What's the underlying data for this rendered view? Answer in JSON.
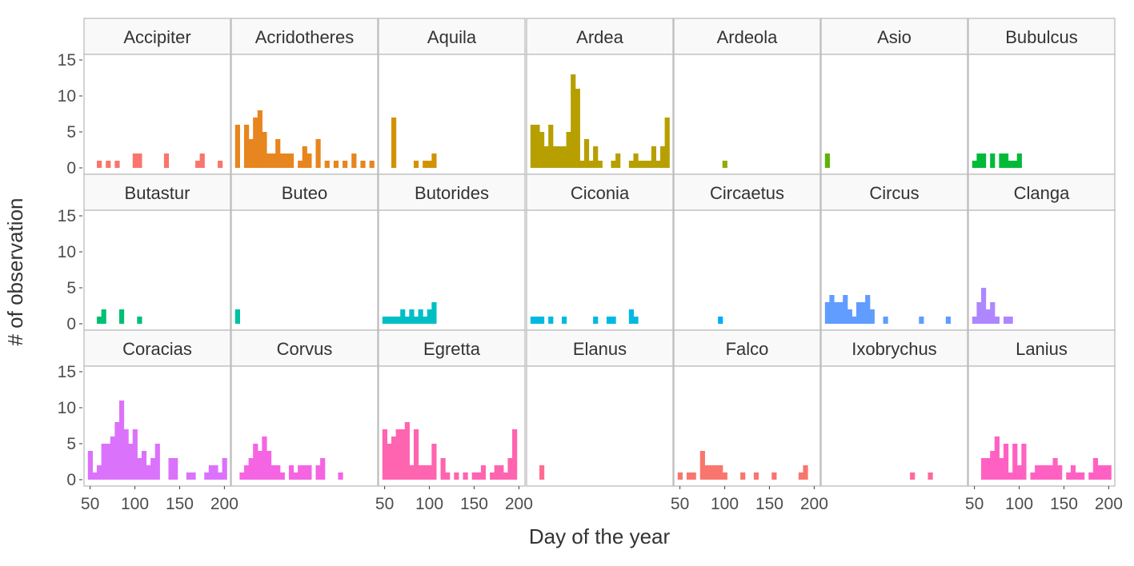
{
  "chart_data": {
    "type": "bar",
    "subtype": "faceted-histogram",
    "xlabel": "Day of the year",
    "ylabel": "# of observation",
    "ylim": [
      0,
      15
    ],
    "yticks": [
      0,
      5,
      10,
      15
    ],
    "xlim": [
      45,
      205
    ],
    "xticks": [
      50,
      100,
      150,
      200
    ],
    "bin_width": 5,
    "grid": false,
    "legend": "none",
    "x_tick_label_panels": [
      14,
      16,
      18,
      20
    ],
    "series": [
      {
        "name": "Accipiter",
        "color": "#F8766D",
        "bins": [
          [
            60,
            1
          ],
          [
            70,
            1
          ],
          [
            80,
            1
          ],
          [
            100,
            2
          ],
          [
            105,
            2
          ],
          [
            135,
            2
          ],
          [
            170,
            1
          ],
          [
            175,
            2
          ],
          [
            195,
            1
          ]
        ]
      },
      {
        "name": "Acridotheres",
        "color": "#E7851E",
        "bins": [
          [
            50,
            6
          ],
          [
            60,
            6
          ],
          [
            65,
            4
          ],
          [
            70,
            7
          ],
          [
            75,
            8
          ],
          [
            80,
            5
          ],
          [
            85,
            2
          ],
          [
            90,
            2
          ],
          [
            95,
            4
          ],
          [
            100,
            2
          ],
          [
            105,
            2
          ],
          [
            110,
            2
          ],
          [
            120,
            1
          ],
          [
            125,
            3
          ],
          [
            130,
            2
          ],
          [
            140,
            4
          ],
          [
            150,
            1
          ],
          [
            160,
            1
          ],
          [
            170,
            1
          ],
          [
            180,
            2
          ],
          [
            190,
            1
          ],
          [
            200,
            1
          ]
        ]
      },
      {
        "name": "Aquila",
        "color": "#D39200",
        "bins": [
          [
            60,
            7
          ],
          [
            85,
            1
          ],
          [
            95,
            1
          ],
          [
            100,
            1
          ],
          [
            105,
            2
          ]
        ]
      },
      {
        "name": "Ardea",
        "color": "#B79F00",
        "bins": [
          [
            50,
            6
          ],
          [
            55,
            6
          ],
          [
            60,
            5
          ],
          [
            65,
            3
          ],
          [
            70,
            6
          ],
          [
            75,
            3
          ],
          [
            80,
            3
          ],
          [
            85,
            3
          ],
          [
            90,
            5
          ],
          [
            95,
            13
          ],
          [
            100,
            11
          ],
          [
            105,
            1
          ],
          [
            110,
            4
          ],
          [
            115,
            1
          ],
          [
            120,
            3
          ],
          [
            125,
            1
          ],
          [
            140,
            1
          ],
          [
            145,
            2
          ],
          [
            160,
            1
          ],
          [
            165,
            2
          ],
          [
            170,
            1
          ],
          [
            175,
            1
          ],
          [
            180,
            1
          ],
          [
            185,
            3
          ],
          [
            190,
            1
          ],
          [
            195,
            3
          ],
          [
            200,
            7
          ]
        ]
      },
      {
        "name": "Ardeola",
        "color": "#93AA00",
        "bins": [
          [
            100,
            1
          ]
        ]
      },
      {
        "name": "Asio",
        "color": "#5EB300",
        "bins": [
          [
            50,
            2
          ]
        ]
      },
      {
        "name": "Bubulcus",
        "color": "#00BA38",
        "bins": [
          [
            50,
            1
          ],
          [
            55,
            2
          ],
          [
            60,
            2
          ],
          [
            70,
            2
          ],
          [
            80,
            2
          ],
          [
            85,
            2
          ],
          [
            90,
            1
          ],
          [
            95,
            1
          ],
          [
            100,
            2
          ]
        ]
      },
      {
        "name": "Butastur",
        "color": "#00BF74",
        "bins": [
          [
            60,
            1
          ],
          [
            65,
            2
          ],
          [
            85,
            2
          ],
          [
            105,
            1
          ]
        ]
      },
      {
        "name": "Buteo",
        "color": "#00C19F",
        "bins": [
          [
            50,
            2
          ]
        ]
      },
      {
        "name": "Butorides",
        "color": "#00BFC4",
        "bins": [
          [
            50,
            1
          ],
          [
            55,
            1
          ],
          [
            60,
            1
          ],
          [
            65,
            1
          ],
          [
            70,
            2
          ],
          [
            75,
            1
          ],
          [
            80,
            2
          ],
          [
            85,
            1
          ],
          [
            90,
            2
          ],
          [
            95,
            1
          ],
          [
            100,
            2
          ],
          [
            105,
            3
          ]
        ]
      },
      {
        "name": "Ciconia",
        "color": "#00B9E3",
        "bins": [
          [
            50,
            1
          ],
          [
            55,
            1
          ],
          [
            60,
            1
          ],
          [
            70,
            1
          ],
          [
            85,
            1
          ],
          [
            120,
            1
          ],
          [
            135,
            1
          ],
          [
            140,
            1
          ],
          [
            160,
            2
          ],
          [
            165,
            1
          ]
        ]
      },
      {
        "name": "Circaetus",
        "color": "#00ADFA",
        "bins": [
          [
            95,
            1
          ]
        ]
      },
      {
        "name": "Circus",
        "color": "#619CFF",
        "bins": [
          [
            50,
            3
          ],
          [
            55,
            4
          ],
          [
            60,
            3
          ],
          [
            65,
            3
          ],
          [
            70,
            4
          ],
          [
            75,
            2
          ],
          [
            80,
            1
          ],
          [
            85,
            3
          ],
          [
            90,
            3
          ],
          [
            95,
            4
          ],
          [
            100,
            2
          ],
          [
            115,
            1
          ],
          [
            155,
            1
          ],
          [
            185,
            1
          ]
        ]
      },
      {
        "name": "Clanga",
        "color": "#AE87FF",
        "bins": [
          [
            50,
            1
          ],
          [
            55,
            3
          ],
          [
            60,
            5
          ],
          [
            65,
            2
          ],
          [
            70,
            3
          ],
          [
            75,
            1
          ],
          [
            85,
            1
          ],
          [
            90,
            1
          ]
        ]
      },
      {
        "name": "Coracias",
        "color": "#DB72FB",
        "bins": [
          [
            50,
            4
          ],
          [
            55,
            1
          ],
          [
            60,
            2
          ],
          [
            65,
            5
          ],
          [
            70,
            5
          ],
          [
            75,
            6
          ],
          [
            80,
            8
          ],
          [
            85,
            11
          ],
          [
            90,
            7
          ],
          [
            95,
            5
          ],
          [
            100,
            7
          ],
          [
            105,
            3
          ],
          [
            110,
            4
          ],
          [
            115,
            2
          ],
          [
            120,
            3
          ],
          [
            125,
            5
          ],
          [
            140,
            3
          ],
          [
            145,
            3
          ],
          [
            160,
            1
          ],
          [
            165,
            1
          ],
          [
            180,
            1
          ],
          [
            185,
            2
          ],
          [
            190,
            2
          ],
          [
            195,
            1
          ],
          [
            200,
            3
          ]
        ]
      },
      {
        "name": "Corvus",
        "color": "#F564E3",
        "bins": [
          [
            55,
            1
          ],
          [
            60,
            2
          ],
          [
            65,
            3
          ],
          [
            70,
            5
          ],
          [
            75,
            4
          ],
          [
            80,
            6
          ],
          [
            85,
            4
          ],
          [
            90,
            2
          ],
          [
            95,
            2
          ],
          [
            100,
            1
          ],
          [
            110,
            2
          ],
          [
            115,
            1
          ],
          [
            120,
            2
          ],
          [
            125,
            2
          ],
          [
            130,
            2
          ],
          [
            140,
            2
          ],
          [
            145,
            3
          ],
          [
            165,
            1
          ]
        ]
      },
      {
        "name": "Egretta",
        "color": "#FF64B0",
        "bins": [
          [
            50,
            7
          ],
          [
            55,
            5
          ],
          [
            60,
            6
          ],
          [
            65,
            7
          ],
          [
            70,
            7
          ],
          [
            75,
            8
          ],
          [
            80,
            2
          ],
          [
            85,
            7
          ],
          [
            90,
            2
          ],
          [
            95,
            2
          ],
          [
            100,
            2
          ],
          [
            105,
            5
          ],
          [
            115,
            3
          ],
          [
            120,
            1
          ],
          [
            130,
            1
          ],
          [
            140,
            1
          ],
          [
            150,
            1
          ],
          [
            155,
            1
          ],
          [
            160,
            2
          ],
          [
            170,
            1
          ],
          [
            175,
            2
          ],
          [
            180,
            2
          ],
          [
            185,
            1
          ],
          [
            190,
            3
          ],
          [
            195,
            7
          ]
        ]
      },
      {
        "name": "Elanus",
        "color": "#FF6C91",
        "bins": [
          [
            60,
            2
          ]
        ]
      },
      {
        "name": "Falco",
        "color": "#F8766D",
        "bins": [
          [
            50,
            1
          ],
          [
            60,
            1
          ],
          [
            65,
            1
          ],
          [
            75,
            4
          ],
          [
            80,
            2
          ],
          [
            85,
            2
          ],
          [
            90,
            2
          ],
          [
            95,
            2
          ],
          [
            100,
            1
          ],
          [
            120,
            1
          ],
          [
            135,
            1
          ],
          [
            155,
            1
          ],
          [
            185,
            1
          ],
          [
            190,
            2
          ]
        ]
      },
      {
        "name": "Ixobrychus",
        "color": "#FF6A98",
        "bins": [
          [
            145,
            1
          ],
          [
            165,
            1
          ]
        ]
      },
      {
        "name": "Lanius",
        "color": "#FF61C3",
        "bins": [
          [
            60,
            3
          ],
          [
            65,
            3
          ],
          [
            70,
            4
          ],
          [
            75,
            6
          ],
          [
            80,
            3
          ],
          [
            85,
            5
          ],
          [
            90,
            1
          ],
          [
            95,
            5
          ],
          [
            100,
            2
          ],
          [
            105,
            5
          ],
          [
            115,
            1
          ],
          [
            120,
            2
          ],
          [
            125,
            2
          ],
          [
            130,
            2
          ],
          [
            135,
            2
          ],
          [
            140,
            3
          ],
          [
            145,
            2
          ],
          [
            155,
            1
          ],
          [
            160,
            2
          ],
          [
            165,
            1
          ],
          [
            170,
            1
          ],
          [
            180,
            1
          ],
          [
            185,
            3
          ],
          [
            190,
            2
          ],
          [
            195,
            2
          ],
          [
            200,
            2
          ]
        ]
      }
    ]
  }
}
